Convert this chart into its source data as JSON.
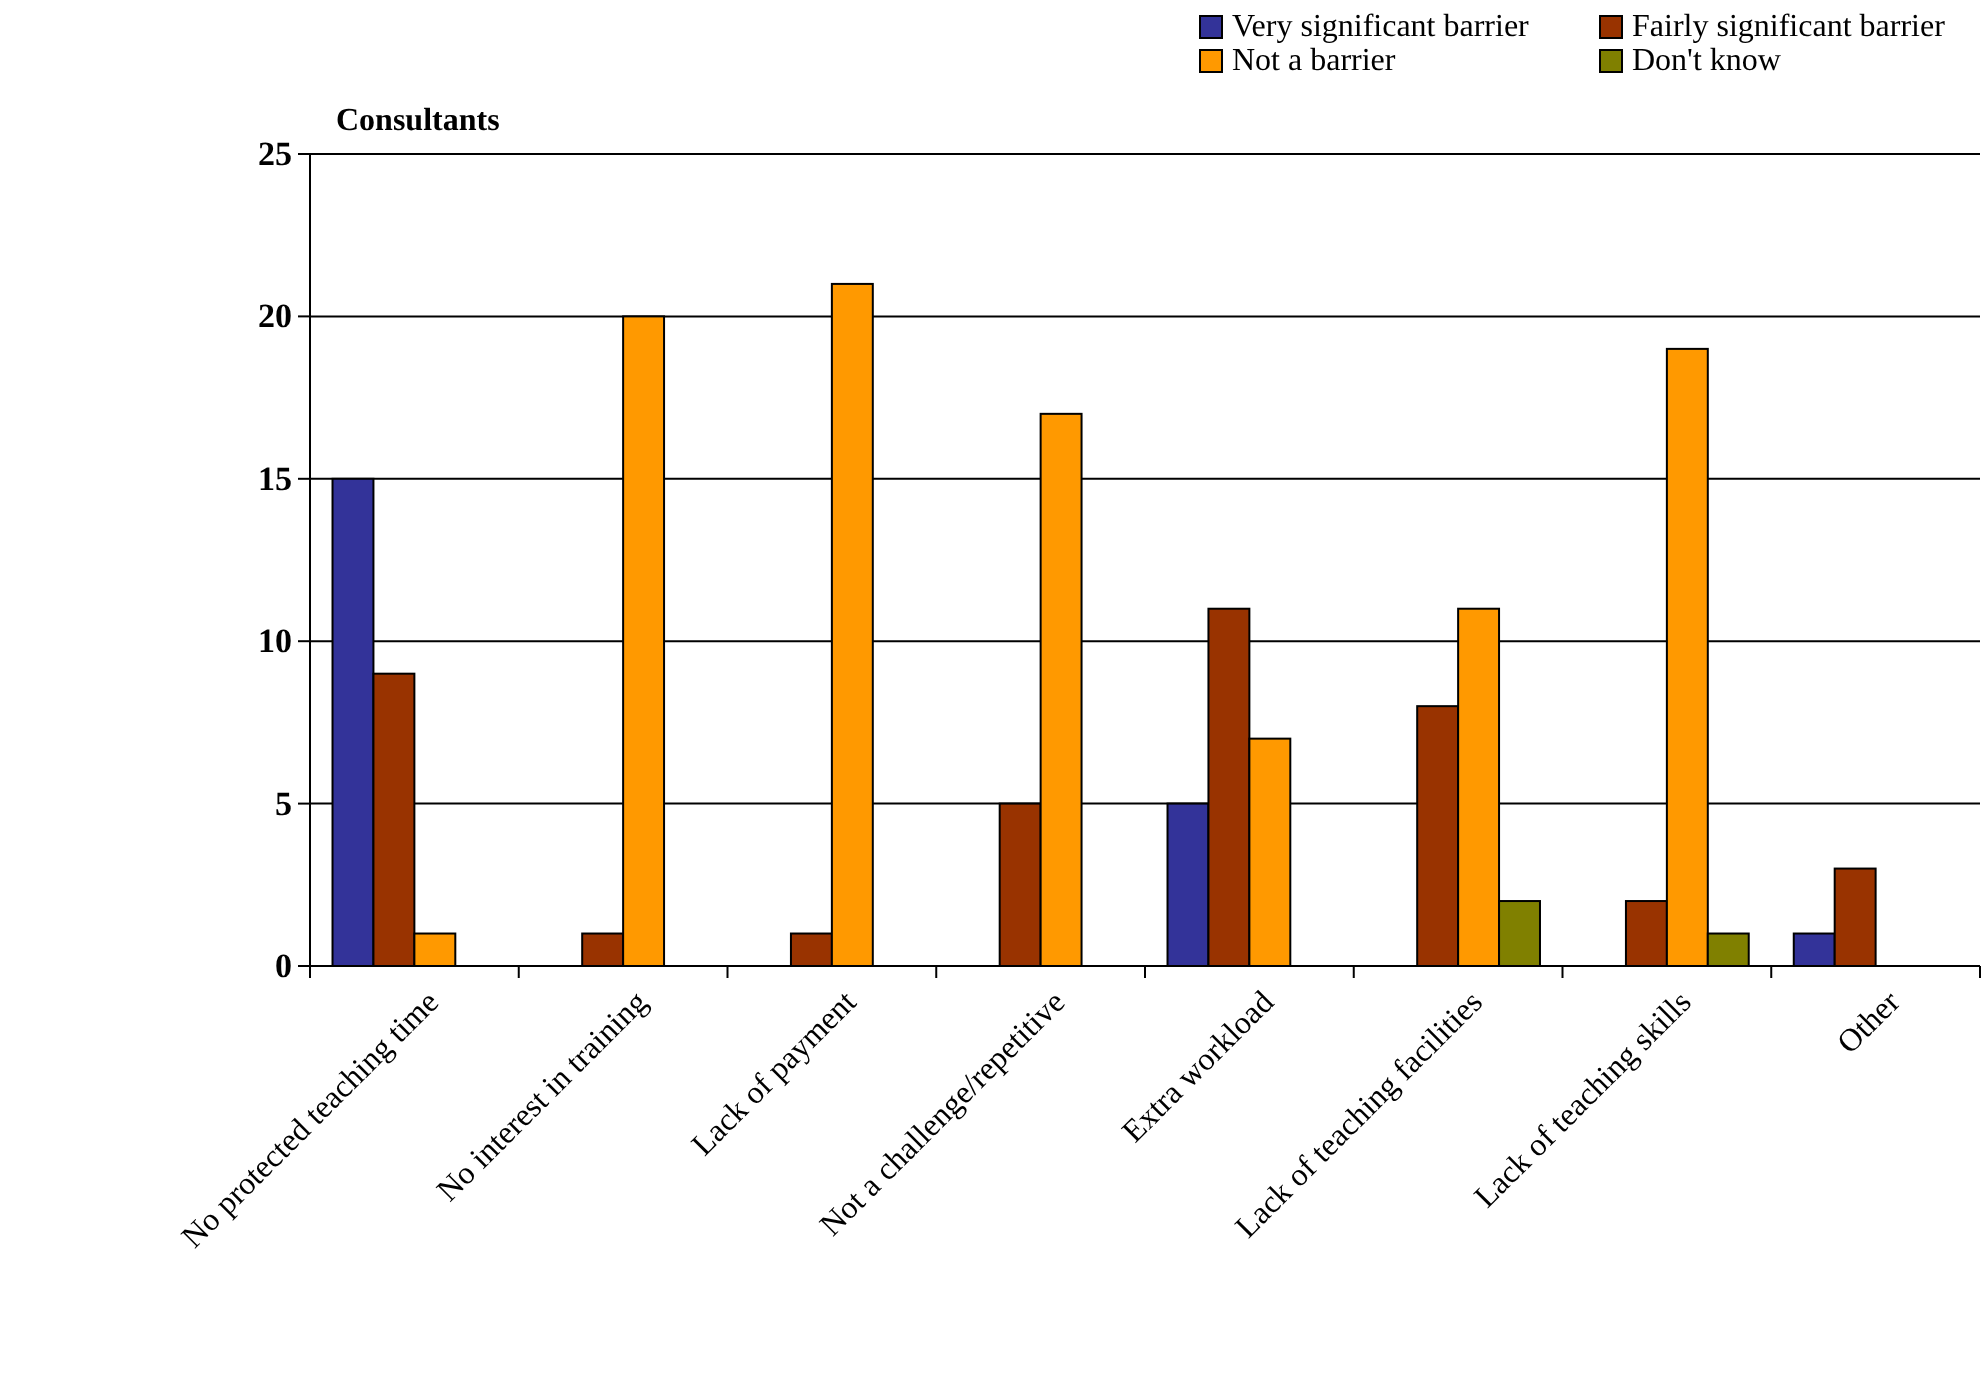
{
  "chart_data": {
    "type": "bar",
    "ylabel": "Consultants",
    "categories": [
      "No protected teaching time",
      "No interest in training",
      "Lack of payment",
      "Not a challenge/repetitive",
      "Extra workload",
      "Lack of teaching facilities",
      "Lack of teaching skills",
      "Other"
    ],
    "series": [
      {
        "name": "Very significant barrier",
        "color": "#333399",
        "values": [
          15,
          0,
          0,
          0,
          5,
          0,
          0,
          1
        ]
      },
      {
        "name": "Fairly significant barrier",
        "color": "#993300",
        "values": [
          9,
          1,
          1,
          5,
          11,
          8,
          2,
          3
        ]
      },
      {
        "name": "Not a barrier",
        "color": "#ff9900",
        "values": [
          1,
          20,
          21,
          17,
          7,
          11,
          19,
          0
        ]
      },
      {
        "name": "Don't know",
        "color": "#808000",
        "values": [
          0,
          0,
          0,
          0,
          0,
          2,
          1,
          0
        ]
      }
    ],
    "ylim": [
      0,
      25
    ],
    "yticks": [
      0,
      5,
      10,
      15,
      20,
      25
    ],
    "grid": "y",
    "legend": "top right"
  }
}
